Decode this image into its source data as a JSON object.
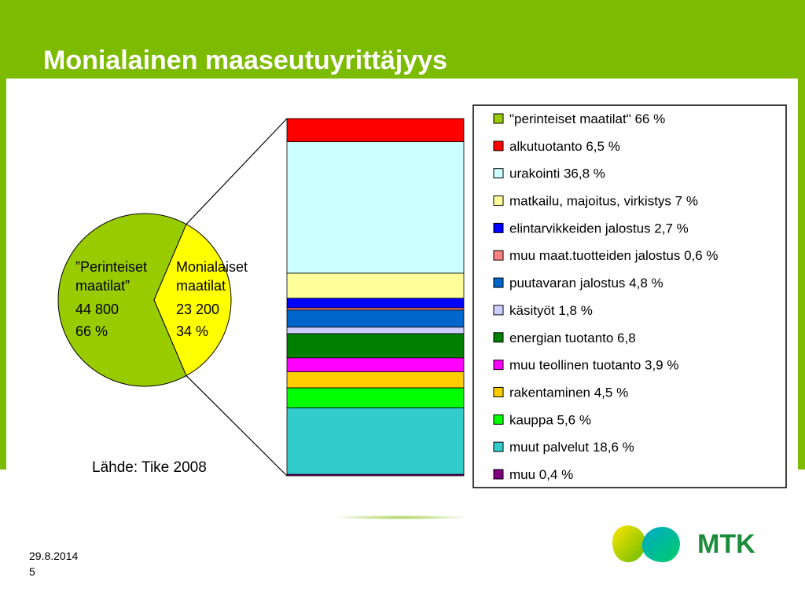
{
  "slide": {
    "title": "Monialainen maaseutuyrittäjyys",
    "source": "Lähde: Tike 2008",
    "date": "29.8.2014",
    "page_number": "5",
    "logo_text": "MTK"
  },
  "colors": {
    "band_green": "#7dbb00",
    "pie_traditional": "#99cc00",
    "pie_multisector": "#ffff00",
    "logo_text": "#1a8c3a"
  },
  "chart_data": [
    {
      "type": "pie",
      "slices": [
        {
          "line1": "”Perinteiset",
          "line2": "maatilat”",
          "count": "44 800",
          "percent_label": "66 %",
          "value": 66,
          "color": "#99cc00"
        },
        {
          "line1": "Monialaiset",
          "line2": "maatilat",
          "count": "23 200",
          "percent_label": "34 %",
          "value": 34,
          "color": "#ffff00"
        }
      ]
    },
    {
      "type": "bar",
      "stacked": true,
      "series": [
        {
          "name": "\"perinteiset maatilat\" 66 %",
          "value": 66,
          "color": "#99cc00",
          "in_stack": false
        },
        {
          "name": "alkutuotanto 6,5 %",
          "value": 6.5,
          "color": "#ff0000",
          "in_stack": true
        },
        {
          "name": "urakointi 36,8 %",
          "value": 36.8,
          "color": "#ccffff",
          "in_stack": true
        },
        {
          "name": "matkailu, majoitus, virkistys 7 %",
          "value": 7,
          "color": "#ffff99",
          "in_stack": true
        },
        {
          "name": "elintarvikkeiden jalostus 2,7 %",
          "value": 2.7,
          "color": "#0000ff",
          "in_stack": true
        },
        {
          "name": "muu maat.tuotteiden jalostus 0,6 %",
          "value": 0.6,
          "color": "#ff8080",
          "in_stack": true
        },
        {
          "name": "puutavaran jalostus 4,8 %",
          "value": 4.8,
          "color": "#0066cc",
          "in_stack": true
        },
        {
          "name": "käsityöt 1,8 %",
          "value": 1.8,
          "color": "#ccccff",
          "in_stack": true
        },
        {
          "name": "energian tuotanto 6,8",
          "value": 6.8,
          "color": "#008000",
          "in_stack": true
        },
        {
          "name": "muu teollinen tuotanto 3,9 %",
          "value": 3.9,
          "color": "#ff00ff",
          "in_stack": true
        },
        {
          "name": "rakentaminen 4,5 %",
          "value": 4.5,
          "color": "#ffcc00",
          "in_stack": true
        },
        {
          "name": "kauppa 5,6 %",
          "value": 5.6,
          "color": "#00ff00",
          "in_stack": true
        },
        {
          "name": "muut palvelut 18,6 %",
          "value": 18.6,
          "color": "#33cccc",
          "in_stack": true
        },
        {
          "name": "muu 0,4 %",
          "value": 0.4,
          "color": "#800080",
          "in_stack": true
        }
      ],
      "legend_position": "right"
    }
  ]
}
